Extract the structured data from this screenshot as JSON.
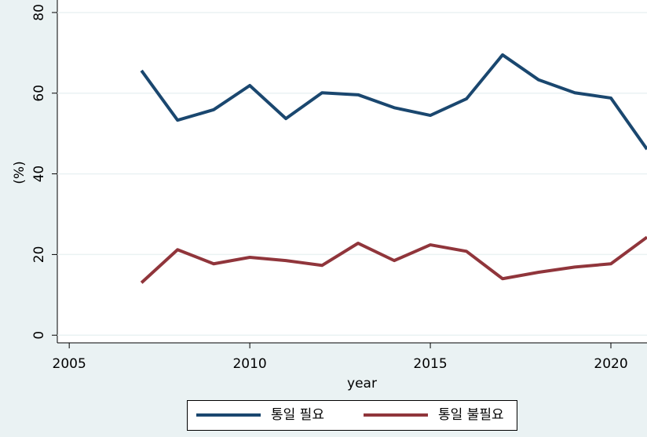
{
  "chart_data": {
    "type": "line",
    "x": [
      2007,
      2008,
      2009,
      2010,
      2011,
      2012,
      2013,
      2014,
      2015,
      2016,
      2017,
      2018,
      2019,
      2020,
      2021
    ],
    "series": [
      {
        "name": "통일 필요",
        "color": "#1a476f",
        "values": [
          65.6,
          53.3,
          55.9,
          61.9,
          53.7,
          60.1,
          59.6,
          56.4,
          54.5,
          58.6,
          69.5,
          63.3,
          60.1,
          58.8,
          46.1
        ]
      },
      {
        "name": "통일 불필요",
        "color": "#90353b",
        "values": [
          13.0,
          21.2,
          17.7,
          19.3,
          18.5,
          17.3,
          22.8,
          18.5,
          22.4,
          20.8,
          14.0,
          15.6,
          16.9,
          17.7,
          24.3
        ]
      }
    ],
    "xlabel": "year",
    "ylabel": "(%)",
    "xlim": [
      2004.67,
      2021
    ],
    "xticks": [
      2005,
      2010,
      2015,
      2020
    ],
    "ylim": [
      -1.9,
      83.1
    ],
    "yticks": [
      0,
      20,
      40,
      60,
      80
    ],
    "grid": true,
    "legend": "bottom"
  }
}
